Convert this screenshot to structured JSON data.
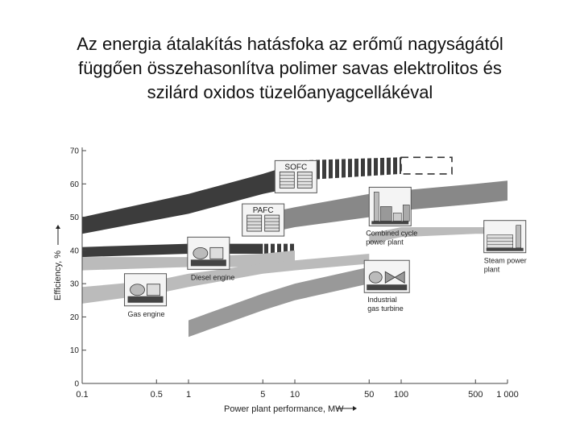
{
  "slide": {
    "title_lines": [
      "Az energia átalakítás hatásfoka az erőmű nagyságától",
      "függően összehasonlítva polimer savas elektrolitos és",
      "szilárd oxidos tüzelőanyagcellákéval"
    ]
  },
  "chart_data": {
    "type": "area",
    "xlabel": "Power plant performance, MW",
    "ylabel": "Efficiency, %",
    "xscale": "log",
    "xlim": [
      0.1,
      1000
    ],
    "ylim": [
      0,
      70
    ],
    "x_ticks": [
      0.1,
      0.5,
      1,
      5,
      10,
      50,
      100,
      500,
      1000
    ],
    "x_tick_labels": [
      "0.1",
      "0.5",
      "1",
      "5",
      "10",
      "50",
      "100",
      "500",
      "1 000"
    ],
    "y_ticks": [
      0,
      10,
      20,
      30,
      40,
      50,
      60,
      70
    ],
    "y_tick_labels": [
      "0",
      "10",
      "20",
      "30",
      "40",
      "50",
      "60",
      "70"
    ],
    "grid": false,
    "legend": "none",
    "colors": {
      "sofc": "#3c3c3c",
      "pafc": "#3c3c3c",
      "combined": "#888888",
      "diesel": "#bbbbbb",
      "gas_engine": "#bbbbbb",
      "gas_turbine": "#999999",
      "steam": "#bbbbbb"
    },
    "series": [
      {
        "key": "sofc",
        "name": "SOFC",
        "style": "solid",
        "x": [
          0.1,
          1,
          5,
          10
        ],
        "low": [
          45,
          51,
          57,
          59
        ],
        "high": [
          50,
          57,
          63,
          66
        ]
      },
      {
        "key": "sofc_ext",
        "style": "dashed-stripes",
        "x": [
          10,
          100
        ],
        "low": [
          61,
          63
        ],
        "high": [
          67,
          68
        ]
      },
      {
        "key": "sofc_proj",
        "style": "dashed-outline",
        "x": [
          100,
          300
        ],
        "low": [
          63,
          63
        ],
        "high": [
          68,
          68
        ]
      },
      {
        "key": "combined",
        "name": "Combined cycle power plant",
        "style": "solid",
        "x": [
          5,
          10,
          50,
          100,
          500,
          1000
        ],
        "low": [
          45,
          47,
          50,
          52,
          54,
          55
        ],
        "high": [
          51,
          53,
          57,
          58,
          60,
          61
        ]
      },
      {
        "key": "pafc",
        "name": "PAFC",
        "style": "solid",
        "x": [
          0.1,
          1,
          5
        ],
        "low": [
          38,
          39,
          39
        ],
        "high": [
          41,
          42,
          42
        ]
      },
      {
        "key": "pafc_ext",
        "style": "dashed-stripes",
        "x": [
          5,
          10
        ],
        "low": [
          39,
          39
        ],
        "high": [
          42,
          42
        ]
      },
      {
        "key": "diesel",
        "name": "Diesel engine",
        "style": "solid",
        "x": [
          0.1,
          1,
          5,
          10
        ],
        "low": [
          34,
          35,
          35,
          36
        ],
        "high": [
          38,
          38,
          39,
          40
        ]
      },
      {
        "key": "gas_engine",
        "name": "Gas engine",
        "style": "solid",
        "x": [
          0.1,
          0.5,
          1,
          5,
          10,
          50
        ],
        "low": [
          24,
          27,
          29,
          33,
          34,
          36
        ],
        "high": [
          29,
          31,
          33,
          36,
          37,
          39
        ]
      },
      {
        "key": "gas_turbine",
        "name": "Industrial gas turbine",
        "style": "solid",
        "x": [
          1,
          5,
          10,
          50
        ],
        "low": [
          14,
          22,
          25,
          30
        ],
        "high": [
          19,
          27,
          30,
          35
        ]
      },
      {
        "key": "steam",
        "name": "Steam power plant",
        "style": "solid",
        "x": [
          50,
          100,
          500,
          1000
        ],
        "low": [
          42,
          44,
          45,
          45
        ],
        "high": [
          45,
          47,
          47,
          47
        ]
      }
    ],
    "annotations": [
      {
        "key": "sofc",
        "label": "SOFC",
        "icon": "stack",
        "x": 6.5,
        "y": 67
      },
      {
        "key": "pafc",
        "label": "PAFC",
        "icon": "stack",
        "x": 3.2,
        "y": 54
      },
      {
        "key": "combined",
        "label": "Combined cycle power plant",
        "icon": "combined",
        "x": 50,
        "y": 59
      },
      {
        "key": "diesel",
        "label": "Diesel engine",
        "icon": "engine",
        "x": 0.98,
        "y": 44
      },
      {
        "key": "gas_engine",
        "label": "Gas engine",
        "icon": "engine",
        "x": 0.25,
        "y": 33
      },
      {
        "key": "gas_turbine",
        "label": "Industrial gas turbine",
        "icon": "turbine",
        "x": 45,
        "y": 37
      },
      {
        "key": "steam",
        "label": "Steam power plant",
        "icon": "steam",
        "x": 600,
        "y": 49
      }
    ]
  }
}
